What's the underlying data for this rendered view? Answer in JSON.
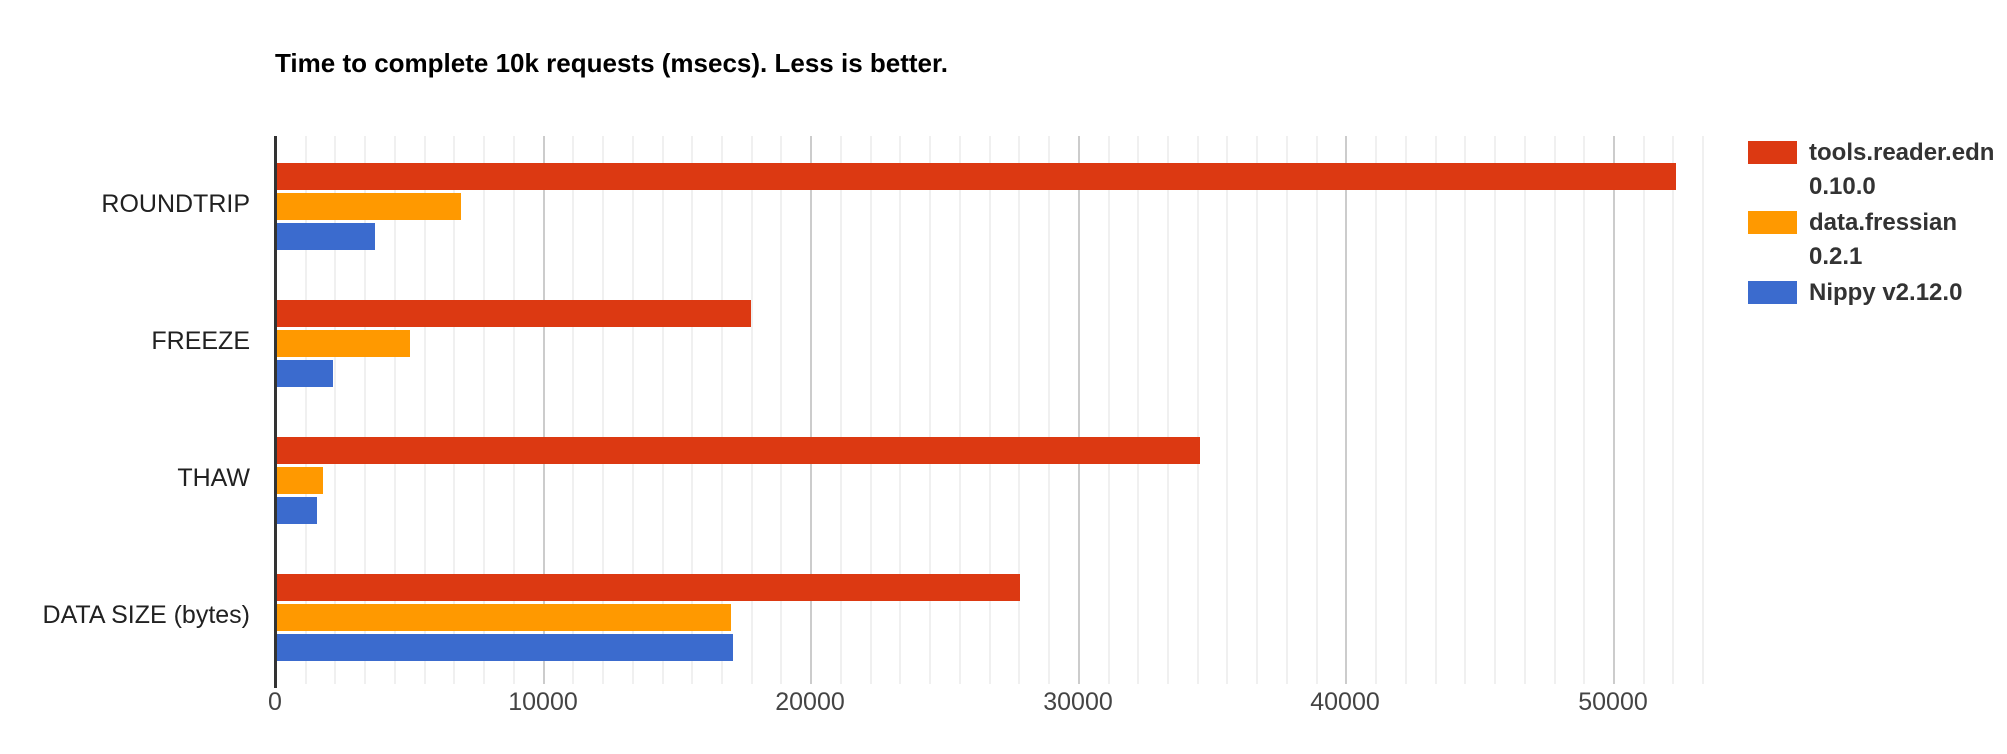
{
  "title": "Time to complete 10k requests (msecs). Less is better.",
  "chart_data": {
    "type": "bar",
    "orientation": "horizontal",
    "title": "Time to complete 10k requests (msecs). Less is better.",
    "categories": [
      "ROUNDTRIP",
      "FREEZE",
      "THAW",
      "DATA SIZE (bytes)"
    ],
    "series": [
      {
        "name": "tools.reader.edn 0.10.0",
        "label_lines": [
          "tools.reader.edn",
          "0.10.0"
        ],
        "color": "#dc3912",
        "values": [
          52350,
          17800,
          34550,
          27850
        ]
      },
      {
        "name": "data.fressian 0.2.1",
        "label_lines": [
          "data.fressian",
          "0.2.1"
        ],
        "color": "#ff9900",
        "values": [
          6950,
          5050,
          1800,
          17050
        ]
      },
      {
        "name": "Nippy v2.12.0",
        "label_lines": [
          "Nippy v2.12.0"
        ],
        "color": "#3b6bce",
        "values": [
          3730,
          2170,
          1570,
          17100
        ]
      }
    ],
    "xlabel": "",
    "ylabel": "",
    "xlim": [
      0,
      53400
    ],
    "x_ticks": [
      0,
      10000,
      20000,
      30000,
      40000,
      50000
    ],
    "x_tick_labels": [
      "0",
      "10000",
      "20000",
      "30000",
      "40000",
      "50000"
    ],
    "grid": {
      "vertical_minor_per_major": 9,
      "minor_color": "#f0f0f0",
      "major_color": "#cccccc"
    },
    "legend_position": "right",
    "baseline_color": "#333333"
  }
}
